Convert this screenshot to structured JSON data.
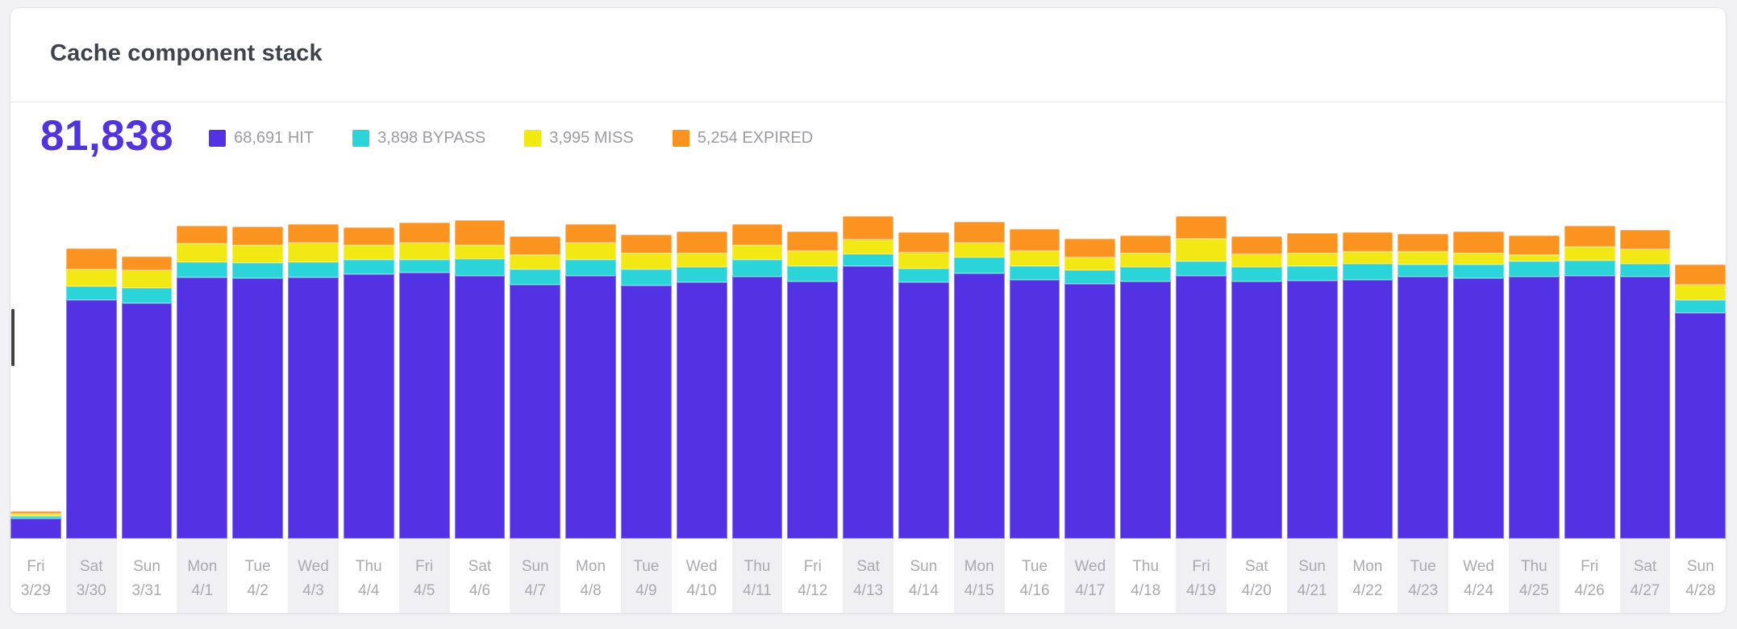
{
  "card": {
    "title": "Cache component stack"
  },
  "stats": {
    "total": "81,838",
    "legend": [
      {
        "value": "68,691",
        "label": "HIT",
        "color": "#5232E2"
      },
      {
        "value": "3,898",
        "label": "BYPASS",
        "color": "#2BD4D8"
      },
      {
        "value": "3,995",
        "label": "MISS",
        "color": "#F2E813"
      },
      {
        "value": "5,254",
        "label": "EXPIRED",
        "color": "#FB9320"
      }
    ]
  },
  "chart_data": {
    "type": "bar",
    "stacked": true,
    "title": "Cache component stack",
    "xlabel": "",
    "ylabel": "",
    "grid": false,
    "y_axis_visible": false,
    "legend_position": "top",
    "total": 81838,
    "categories": [
      {
        "day": "Fri",
        "date": "3/29"
      },
      {
        "day": "Sat",
        "date": "3/30"
      },
      {
        "day": "Sun",
        "date": "3/31"
      },
      {
        "day": "Mon",
        "date": "4/1"
      },
      {
        "day": "Tue",
        "date": "4/2"
      },
      {
        "day": "Wed",
        "date": "4/3"
      },
      {
        "day": "Thu",
        "date": "4/4"
      },
      {
        "day": "Fri",
        "date": "4/5"
      },
      {
        "day": "Sat",
        "date": "4/6"
      },
      {
        "day": "Sun",
        "date": "4/7"
      },
      {
        "day": "Mon",
        "date": "4/8"
      },
      {
        "day": "Tue",
        "date": "4/9"
      },
      {
        "day": "Wed",
        "date": "4/10"
      },
      {
        "day": "Thu",
        "date": "4/11"
      },
      {
        "day": "Fri",
        "date": "4/12"
      },
      {
        "day": "Sat",
        "date": "4/13"
      },
      {
        "day": "Sun",
        "date": "4/14"
      },
      {
        "day": "Mon",
        "date": "4/15"
      },
      {
        "day": "Tue",
        "date": "4/16"
      },
      {
        "day": "Wed",
        "date": "4/17"
      },
      {
        "day": "Thu",
        "date": "4/18"
      },
      {
        "day": "Fri",
        "date": "4/19"
      },
      {
        "day": "Sat",
        "date": "4/20"
      },
      {
        "day": "Sun",
        "date": "4/21"
      },
      {
        "day": "Mon",
        "date": "4/22"
      },
      {
        "day": "Tue",
        "date": "4/23"
      },
      {
        "day": "Wed",
        "date": "4/24"
      },
      {
        "day": "Thu",
        "date": "4/25"
      },
      {
        "day": "Fri",
        "date": "4/26"
      },
      {
        "day": "Sat",
        "date": "4/27"
      },
      {
        "day": "Sun",
        "date": "4/28"
      }
    ],
    "series": [
      {
        "name": "HIT",
        "total": 68691,
        "color": "#5232E2",
        "values": [
          181,
          2117,
          2088,
          2313,
          2305,
          2313,
          2341,
          2354,
          2327,
          2250,
          2329,
          2245,
          2269,
          2318,
          2281,
          2417,
          2274,
          2346,
          2293,
          2257,
          2281,
          2330,
          2281,
          2286,
          2294,
          2322,
          2305,
          2323,
          2331,
          2318,
          2002
        ]
      },
      {
        "name": "BYPASS",
        "total": 3898,
        "color": "#2BD4D8",
        "values": [
          22,
          119,
          135,
          135,
          135,
          135,
          130,
          118,
          148,
          138,
          143,
          143,
          135,
          154,
          135,
          106,
          118,
          143,
          124,
          119,
          123,
          125,
          123,
          126,
          143,
          109,
          126,
          130,
          130,
          114,
          114
        ]
      },
      {
        "name": "MISS",
        "total": 3995,
        "color": "#F2E813",
        "values": [
          17,
          151,
          152,
          163,
          159,
          171,
          128,
          152,
          127,
          127,
          152,
          140,
          127,
          128,
          135,
          127,
          140,
          135,
          135,
          116,
          123,
          199,
          118,
          116,
          103,
          108,
          96,
          62,
          121,
          135,
          132
        ]
      },
      {
        "name": "EXPIRED",
        "total": 5254,
        "color": "#FB9320",
        "values": [
          20,
          186,
          127,
          157,
          163,
          169,
          156,
          173,
          215,
          161,
          164,
          161,
          193,
          188,
          168,
          203,
          184,
          181,
          193,
          161,
          161,
          202,
          154,
          181,
          176,
          162,
          192,
          168,
          186,
          171,
          178
        ]
      }
    ]
  }
}
